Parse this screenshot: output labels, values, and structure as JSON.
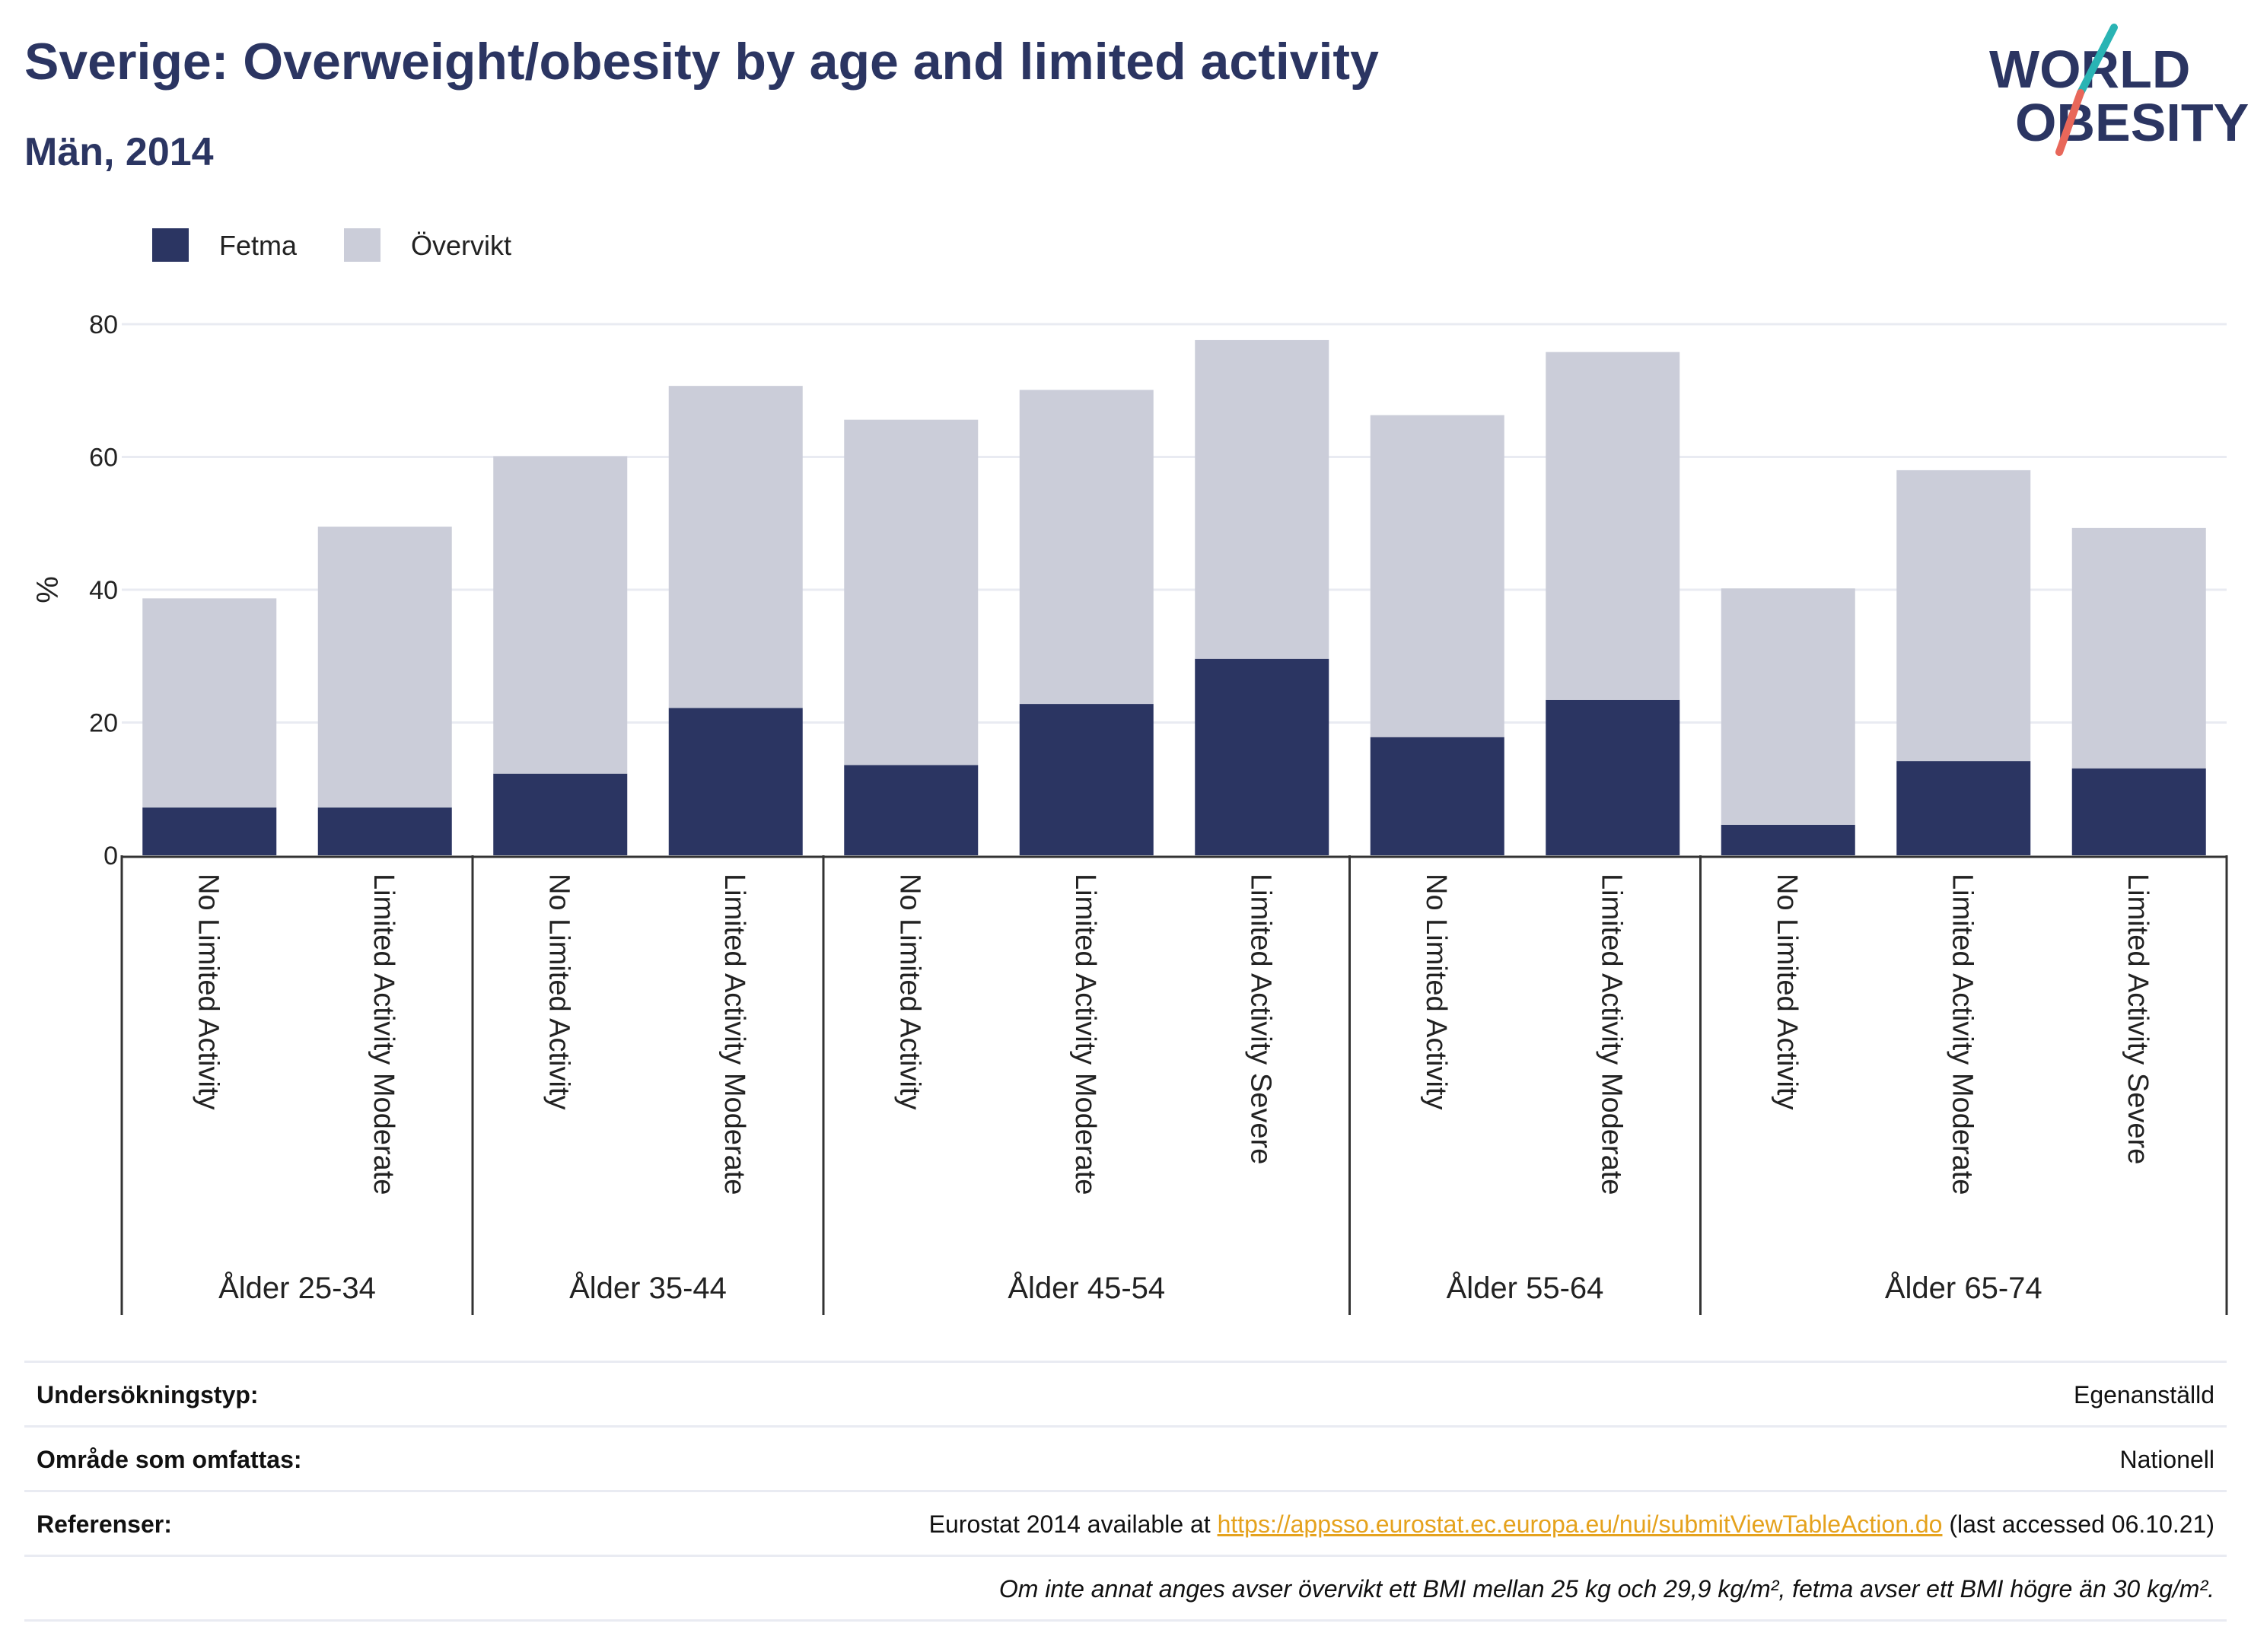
{
  "header": {
    "title": "Sverige: Overweight/obesity by age and limited activity",
    "subtitle": "Män, 2014"
  },
  "logo": {
    "line1": "WORLD",
    "line2": "OBESITY",
    "colors": {
      "text": "#2b3562",
      "slash_top": "#2ab4b4",
      "slash_bottom": "#e8675a"
    }
  },
  "colors": {
    "fetma": "#2b3562",
    "overvikt": "#cbcdd9",
    "grid": "#e9ebf2",
    "axis": "#333333",
    "link": "#e5a21d"
  },
  "chart_data": {
    "type": "bar",
    "stacked": true,
    "ylabel": "%",
    "ylim": [
      0,
      80
    ],
    "yticks": [
      0,
      20,
      40,
      60,
      80
    ],
    "grid": true,
    "legend_position": "top-left",
    "groups": [
      {
        "label": "Ålder 25-34",
        "categories": [
          "No Limited Activity",
          "Limited Activity Moderate"
        ]
      },
      {
        "label": "Ålder 35-44",
        "categories": [
          "No Limited Activity",
          "Limited Activity Moderate"
        ]
      },
      {
        "label": "Ålder 45-54",
        "categories": [
          "No Limited Activity",
          "Limited Activity Moderate",
          "Limited Activity Severe"
        ]
      },
      {
        "label": "Ålder 55-64",
        "categories": [
          "No Limited Activity",
          "Limited Activity Moderate"
        ]
      },
      {
        "label": "Ålder 65-74",
        "categories": [
          "No Limited Activity",
          "Limited Activity Moderate",
          "Limited Activity Severe"
        ]
      }
    ],
    "series": [
      {
        "name": "Fetma",
        "values": [
          7.2,
          7.2,
          12.3,
          22.2,
          13.6,
          22.8,
          29.6,
          17.8,
          23.4,
          4.6,
          14.2,
          13.1
        ]
      },
      {
        "name": "Övervikt",
        "values": [
          31.5,
          42.3,
          47.8,
          48.5,
          52.0,
          47.3,
          48.0,
          48.5,
          52.4,
          35.6,
          43.8,
          36.2
        ]
      }
    ]
  },
  "info": {
    "rows": [
      {
        "label": "Undersökningstyp:",
        "value": "Egenanställd"
      },
      {
        "label": "Område som omfattas:",
        "value": "Nationell"
      },
      {
        "label": "Referenser:",
        "value_prefix": "Eurostat 2014 available at ",
        "link": "https://appsso.eurostat.ec.europa.eu/nui/submitViewTableAction.do",
        "value_suffix": " (last accessed 06.10.21)"
      }
    ],
    "note": "Om inte annat anges avser övervikt ett BMI mellan 25 kg och 29,9 kg/m², fetma avser ett BMI högre än 30 kg/m²."
  }
}
